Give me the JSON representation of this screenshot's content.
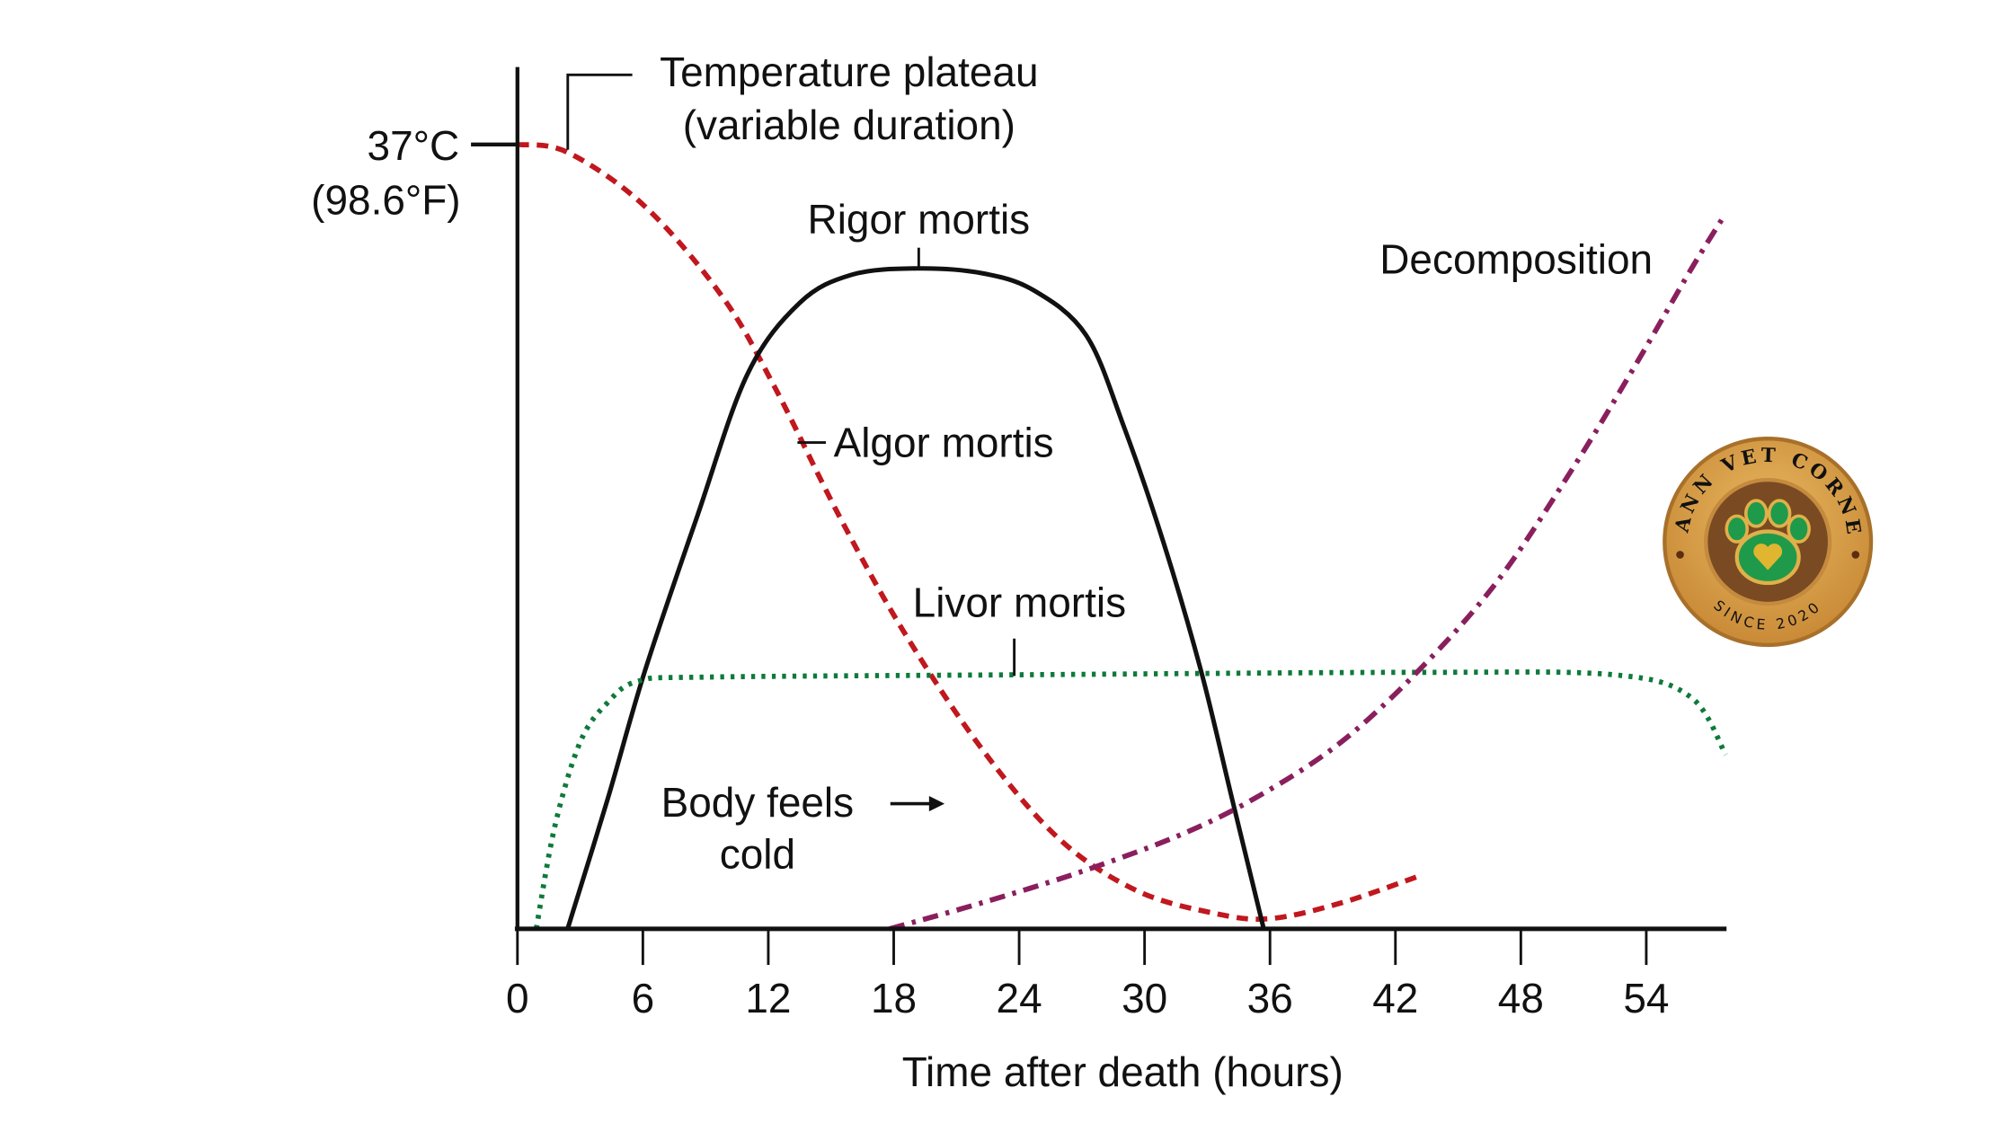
{
  "chart_data": {
    "type": "line",
    "title": "",
    "xlabel": "Time after death (hours)",
    "ylabel": "",
    "xlim": [
      0,
      58
    ],
    "ylim": [
      0,
      100
    ],
    "x_ticks": [
      0,
      6,
      12,
      18,
      24,
      30,
      36,
      42,
      48,
      54
    ],
    "y_tick_label": {
      "line1": "37°C",
      "line2": "(98.6°F)",
      "level": 100
    },
    "grid": false,
    "series": [
      {
        "name": "Algor mortis",
        "style": "dashed",
        "color": "#c0181e",
        "x": [
          0,
          2.4,
          6.1,
          9.8,
          12.3,
          15.4,
          18.5,
          22.2,
          25.9,
          29.6,
          33.3,
          36,
          39.4,
          43
        ],
        "y": [
          100,
          99,
          92.1,
          80.6,
          69.1,
          52.6,
          37.8,
          23,
          11.5,
          4.9,
          2,
          1.3,
          3.3,
          6.6
        ]
      },
      {
        "name": "Rigor mortis",
        "style": "solid",
        "color": "#111111",
        "x": [
          2.4,
          4.3,
          6.1,
          8.6,
          11,
          13.5,
          16,
          19.1,
          22.2,
          24.7,
          27.2,
          29,
          30.9,
          32.7,
          34.2,
          35.7
        ],
        "y": [
          0,
          16.4,
          32.9,
          52.6,
          70.7,
          79.8,
          83.4,
          84.2,
          83.6,
          81.4,
          75.7,
          64.1,
          49.3,
          32.9,
          16.4,
          0
        ]
      },
      {
        "name": "Livor mortis",
        "style": "dotted",
        "color": "#0e7a3a",
        "x": [
          0.9,
          1.8,
          3,
          4.3,
          5.8,
          9.2,
          24.6,
          43.1,
          52.4,
          56.1,
          57.8
        ],
        "y": [
          0,
          13.2,
          23.8,
          28.8,
          31.6,
          32.1,
          32.4,
          32.7,
          32.4,
          29.6,
          22.2
        ]
      },
      {
        "name": "Decomposition",
        "style": "dash-dot",
        "color": "#8a1f5e",
        "x": [
          17.8,
          22.2,
          27.1,
          32,
          35.7,
          39.4,
          43.1,
          46.9,
          50.6,
          53.6,
          56.1,
          57.7
        ],
        "y": [
          0,
          3.3,
          7.4,
          12.3,
          17.3,
          23.8,
          32.9,
          44.4,
          59.2,
          72.4,
          83.9,
          90.8
        ]
      }
    ],
    "annotations": {
      "plateau_line1": "Temperature plateau",
      "plateau_line2": "(variable duration)",
      "rigor": "Rigor mortis",
      "algor": "Algor mortis",
      "livor": "Livor mortis",
      "decomposition": "Decomposition",
      "cold_line1": "Body feels",
      "cold_line2": "cold"
    }
  },
  "logo": {
    "top_text": "MANN VET CORNER",
    "bottom_text": "SINCE 2020",
    "colors": {
      "wood": "#d9a04a",
      "rim": "#a8702a",
      "inner": "#7a4a22",
      "paw": "#1f9a4a",
      "heart": "#e0b530"
    }
  }
}
